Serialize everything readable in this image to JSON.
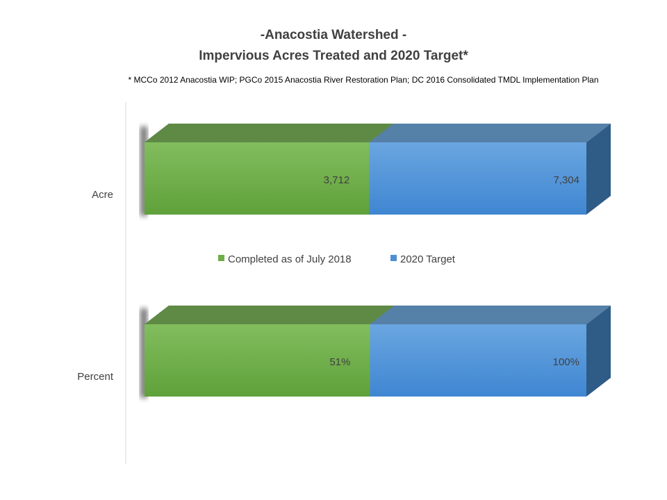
{
  "title_line1": "-Anacostia Watershed -",
  "title_line2": "Impervious Acres Treated and 2020 Target*",
  "footnote": "* MCCo 2012  Anacostia WIP; PGCo 2015  Anacostia River Restoration Plan; DC 2016  Consolidated TMDL Implementation Plan",
  "chart_data": {
    "type": "bar",
    "orientation": "horizontal",
    "stacked": false,
    "overlapping": true,
    "three_d": true,
    "categories": [
      "Acre",
      "Percent"
    ],
    "series": [
      {
        "name": "2020 Target",
        "color": "#4e8fd4",
        "values": [
          7304,
          100
        ],
        "labels": [
          "7,304",
          "100%"
        ]
      },
      {
        "name": "Completed as of July 2018",
        "color": "#6fae46",
        "values": [
          3712,
          51
        ],
        "labels": [
          "3,712",
          "51%"
        ]
      }
    ],
    "legend": {
      "position": "between-bars",
      "order": [
        "Completed as of July 2018",
        "2020 Target"
      ]
    },
    "grid": false,
    "xaxis_visible": false
  }
}
